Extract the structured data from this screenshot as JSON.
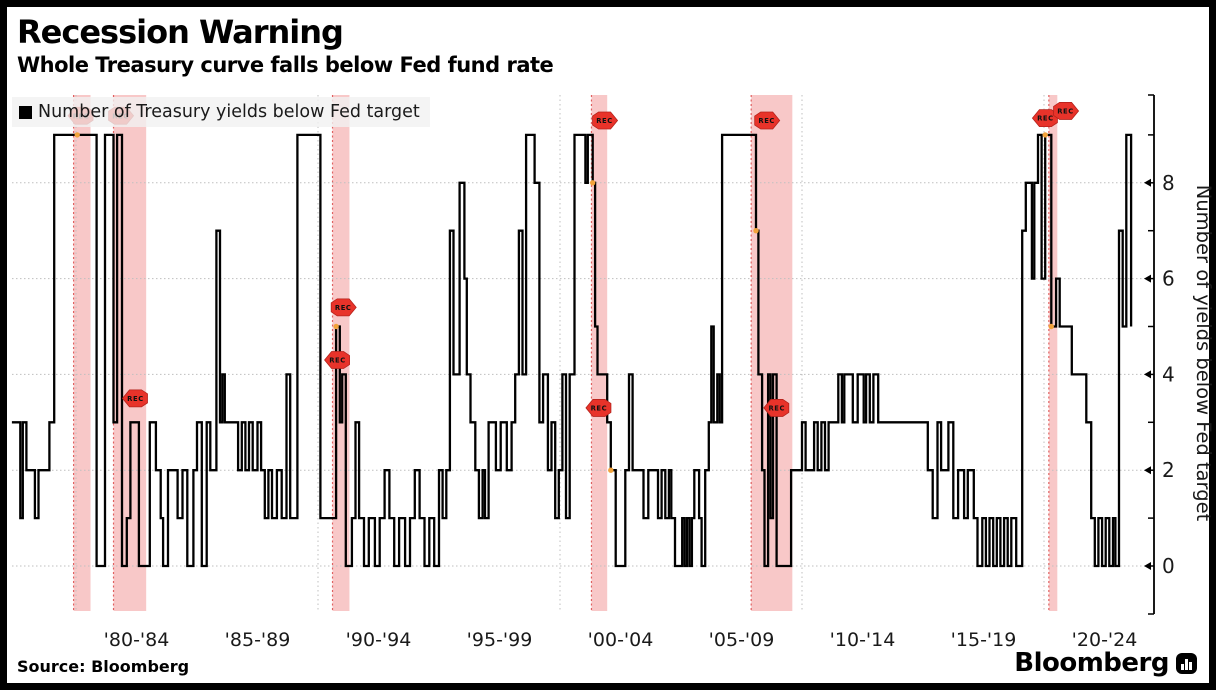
{
  "page": {
    "title": "Recession Warning",
    "subtitle": "Whole Treasury curve falls below Fed fund rate",
    "source": "Source: Bloomberg",
    "brand": "Bloomberg"
  },
  "legend": {
    "label": "Number of Treasury yields below Fed target",
    "swatch_color": "#000000"
  },
  "chart_data": {
    "type": "line",
    "step": true,
    "title": "Recession Warning",
    "subtitle": "Whole Treasury curve falls below Fed fund rate",
    "xlabel": "",
    "ylabel": "Number of yields below Fed target",
    "ylim": [
      0,
      9
    ],
    "xlim": [
      1977.35,
      2024.6
    ],
    "grid": {
      "h_values": [
        0,
        2,
        4,
        6,
        8
      ],
      "v_years": [
        1980,
        1990,
        2000,
        2010,
        2020
      ]
    },
    "y_axis": {
      "tick_values": [
        0,
        1,
        2,
        3,
        4,
        5,
        6,
        7,
        8,
        9
      ],
      "label_values": [
        0,
        2,
        4,
        6,
        8
      ]
    },
    "x_axis": {
      "labels": [
        {
          "text": "'80-'84",
          "year": 1982.5
        },
        {
          "text": "'85-'89",
          "year": 1987.5
        },
        {
          "text": "'90-'94",
          "year": 1992.5
        },
        {
          "text": "'95-'99",
          "year": 1997.5
        },
        {
          "text": "'00-'04",
          "year": 2002.5
        },
        {
          "text": "'05-'09",
          "year": 2007.5
        },
        {
          "text": "'10-'14",
          "year": 2012.5
        },
        {
          "text": "'15-'19",
          "year": 2017.5
        },
        {
          "text": "'20-'24",
          "year": 2022.5
        }
      ]
    },
    "series": [
      {
        "name": "Number of Treasury yields below Fed target",
        "color": "#000000",
        "points": [
          [
            1977.35,
            3
          ],
          [
            1977.7,
            1
          ],
          [
            1977.8,
            3
          ],
          [
            1977.95,
            2
          ],
          [
            1978.3,
            1
          ],
          [
            1978.45,
            2
          ],
          [
            1978.9,
            3
          ],
          [
            1979.1,
            9
          ],
          [
            1980.85,
            0
          ],
          [
            1981.2,
            9
          ],
          [
            1981.55,
            3
          ],
          [
            1981.7,
            9
          ],
          [
            1981.9,
            0
          ],
          [
            1982.1,
            1
          ],
          [
            1982.25,
            3
          ],
          [
            1982.6,
            0
          ],
          [
            1983.05,
            3
          ],
          [
            1983.3,
            2
          ],
          [
            1983.5,
            1
          ],
          [
            1983.6,
            0
          ],
          [
            1983.8,
            2
          ],
          [
            1984.2,
            1
          ],
          [
            1984.4,
            2
          ],
          [
            1984.6,
            0
          ],
          [
            1984.85,
            2
          ],
          [
            1985.0,
            3
          ],
          [
            1985.2,
            0
          ],
          [
            1985.4,
            3
          ],
          [
            1985.55,
            2
          ],
          [
            1985.8,
            7
          ],
          [
            1985.95,
            3
          ],
          [
            1986.05,
            4
          ],
          [
            1986.15,
            3
          ],
          [
            1986.7,
            2
          ],
          [
            1986.85,
            3
          ],
          [
            1987.0,
            2
          ],
          [
            1987.15,
            3
          ],
          [
            1987.3,
            2
          ],
          [
            1987.5,
            3
          ],
          [
            1987.65,
            2
          ],
          [
            1987.8,
            1
          ],
          [
            1987.95,
            2
          ],
          [
            1988.1,
            1
          ],
          [
            1988.3,
            2
          ],
          [
            1988.5,
            1
          ],
          [
            1988.7,
            4
          ],
          [
            1988.85,
            1
          ],
          [
            1989.15,
            9
          ],
          [
            1990.1,
            1
          ],
          [
            1990.75,
            5
          ],
          [
            1990.9,
            3
          ],
          [
            1991.0,
            4
          ],
          [
            1991.15,
            0
          ],
          [
            1991.4,
            1
          ],
          [
            1991.55,
            3
          ],
          [
            1991.7,
            1
          ],
          [
            1991.9,
            0
          ],
          [
            1992.1,
            1
          ],
          [
            1992.35,
            0
          ],
          [
            1992.55,
            1
          ],
          [
            1992.75,
            2
          ],
          [
            1992.95,
            1
          ],
          [
            1993.15,
            0
          ],
          [
            1993.35,
            1
          ],
          [
            1993.6,
            0
          ],
          [
            1993.8,
            1
          ],
          [
            1994.0,
            2
          ],
          [
            1994.2,
            1
          ],
          [
            1994.4,
            0
          ],
          [
            1994.6,
            1
          ],
          [
            1994.8,
            0
          ],
          [
            1995.0,
            2
          ],
          [
            1995.15,
            1
          ],
          [
            1995.3,
            2
          ],
          [
            1995.45,
            7
          ],
          [
            1995.6,
            4
          ],
          [
            1995.85,
            8
          ],
          [
            1996.05,
            6
          ],
          [
            1996.15,
            4
          ],
          [
            1996.3,
            3
          ],
          [
            1996.5,
            2
          ],
          [
            1996.65,
            1
          ],
          [
            1996.8,
            2
          ],
          [
            1996.9,
            1
          ],
          [
            1997.05,
            3
          ],
          [
            1997.35,
            2
          ],
          [
            1997.55,
            3
          ],
          [
            1997.8,
            2
          ],
          [
            1998.0,
            3
          ],
          [
            1998.15,
            4
          ],
          [
            1998.3,
            7
          ],
          [
            1998.45,
            4
          ],
          [
            1998.6,
            9
          ],
          [
            1998.95,
            8
          ],
          [
            1999.15,
            3
          ],
          [
            1999.3,
            4
          ],
          [
            1999.5,
            2
          ],
          [
            1999.65,
            3
          ],
          [
            1999.8,
            1
          ],
          [
            1999.95,
            2
          ],
          [
            2000.1,
            4
          ],
          [
            2000.25,
            1
          ],
          [
            2000.4,
            4
          ],
          [
            2000.6,
            9
          ],
          [
            2001.05,
            8
          ],
          [
            2001.15,
            9
          ],
          [
            2001.35,
            8
          ],
          [
            2001.45,
            5
          ],
          [
            2001.55,
            4
          ],
          [
            2001.95,
            3
          ],
          [
            2002.1,
            2
          ],
          [
            2002.3,
            0
          ],
          [
            2002.7,
            2
          ],
          [
            2002.85,
            4
          ],
          [
            2003.0,
            2
          ],
          [
            2003.45,
            1
          ],
          [
            2003.65,
            2
          ],
          [
            2004.05,
            1
          ],
          [
            2004.2,
            2
          ],
          [
            2004.35,
            1
          ],
          [
            2004.5,
            2
          ],
          [
            2004.6,
            1
          ],
          [
            2004.75,
            0
          ],
          [
            2005.05,
            1
          ],
          [
            2005.15,
            0
          ],
          [
            2005.25,
            1
          ],
          [
            2005.35,
            0
          ],
          [
            2005.45,
            1
          ],
          [
            2005.55,
            2
          ],
          [
            2005.75,
            1
          ],
          [
            2005.85,
            0
          ],
          [
            2006.0,
            2
          ],
          [
            2006.15,
            3
          ],
          [
            2006.25,
            5
          ],
          [
            2006.35,
            3
          ],
          [
            2006.5,
            4
          ],
          [
            2006.6,
            3
          ],
          [
            2006.7,
            9
          ],
          [
            2008.1,
            7
          ],
          [
            2008.2,
            4
          ],
          [
            2008.35,
            2
          ],
          [
            2008.45,
            0
          ],
          [
            2008.6,
            4
          ],
          [
            2008.7,
            1
          ],
          [
            2008.8,
            4
          ],
          [
            2008.95,
            0
          ],
          [
            2009.55,
            2
          ],
          [
            2010.0,
            3
          ],
          [
            2010.15,
            2
          ],
          [
            2010.5,
            3
          ],
          [
            2010.65,
            2
          ],
          [
            2010.8,
            3
          ],
          [
            2010.95,
            2
          ],
          [
            2011.1,
            3
          ],
          [
            2011.5,
            4
          ],
          [
            2011.65,
            3
          ],
          [
            2011.75,
            4
          ],
          [
            2012.1,
            3
          ],
          [
            2012.3,
            4
          ],
          [
            2012.55,
            3
          ],
          [
            2012.65,
            4
          ],
          [
            2012.8,
            3
          ],
          [
            2012.95,
            4
          ],
          [
            2013.15,
            3
          ],
          [
            2015.2,
            2
          ],
          [
            2015.4,
            1
          ],
          [
            2015.6,
            3
          ],
          [
            2015.75,
            2
          ],
          [
            2016.05,
            3
          ],
          [
            2016.25,
            1
          ],
          [
            2016.45,
            2
          ],
          [
            2016.7,
            1
          ],
          [
            2016.85,
            2
          ],
          [
            2017.1,
            1
          ],
          [
            2017.25,
            0
          ],
          [
            2017.45,
            1
          ],
          [
            2017.6,
            0
          ],
          [
            2017.75,
            1
          ],
          [
            2017.9,
            0
          ],
          [
            2018.05,
            1
          ],
          [
            2018.2,
            0
          ],
          [
            2018.35,
            1
          ],
          [
            2018.5,
            0
          ],
          [
            2018.65,
            1
          ],
          [
            2018.85,
            0
          ],
          [
            2019.1,
            7
          ],
          [
            2019.25,
            8
          ],
          [
            2019.5,
            6
          ],
          [
            2019.6,
            8
          ],
          [
            2019.75,
            9
          ],
          [
            2019.9,
            6
          ],
          [
            2020.05,
            9
          ],
          [
            2020.3,
            5
          ],
          [
            2020.5,
            6
          ],
          [
            2020.65,
            5
          ],
          [
            2021.15,
            4
          ],
          [
            2021.75,
            3
          ],
          [
            2021.95,
            1
          ],
          [
            2022.1,
            0
          ],
          [
            2022.25,
            1
          ],
          [
            2022.4,
            0
          ],
          [
            2022.55,
            1
          ],
          [
            2022.7,
            0
          ],
          [
            2022.85,
            1
          ],
          [
            2022.95,
            0
          ],
          [
            2023.1,
            7
          ],
          [
            2023.25,
            5
          ],
          [
            2023.4,
            9
          ],
          [
            2023.6,
            5
          ]
        ]
      }
    ],
    "recession_bands": [
      {
        "start": 1979.9,
        "end": 1980.6
      },
      {
        "start": 1981.55,
        "end": 1982.9
      },
      {
        "start": 1990.6,
        "end": 1991.3
      },
      {
        "start": 2001.3,
        "end": 2001.95
      },
      {
        "start": 2007.9,
        "end": 2009.6
      },
      {
        "start": 2020.2,
        "end": 2020.55
      }
    ],
    "rec_flags": [
      {
        "label": "REC",
        "year": 1980.25,
        "value": 9.4,
        "dir": "left"
      },
      {
        "label": "REC",
        "year": 1981.8,
        "value": 9.4,
        "dir": "right"
      },
      {
        "label": "REC",
        "year": 1982.5,
        "value": 3.5,
        "dir": "left"
      },
      {
        "label": "REC",
        "year": 1991.0,
        "value": 5.4,
        "dir": "right"
      },
      {
        "label": "REC",
        "year": 1990.85,
        "value": 4.3,
        "dir": "left"
      },
      {
        "label": "REC",
        "year": 2001.8,
        "value": 9.3,
        "dir": "right"
      },
      {
        "label": "REC",
        "year": 2001.65,
        "value": 3.3,
        "dir": "left"
      },
      {
        "label": "REC",
        "year": 2008.5,
        "value": 9.3,
        "dir": "right"
      },
      {
        "label": "REC",
        "year": 2009.0,
        "value": 3.3,
        "dir": "left"
      },
      {
        "label": "REC",
        "year": 2020.1,
        "value": 9.35,
        "dir": "left"
      },
      {
        "label": "REC",
        "year": 2020.85,
        "value": 9.5,
        "dir": "right"
      }
    ],
    "onset_dots": [
      {
        "year": 1980.05,
        "value": 9
      },
      {
        "year": 1990.75,
        "value": 5
      },
      {
        "year": 2001.35,
        "value": 8
      },
      {
        "year": 2002.1,
        "value": 2
      },
      {
        "year": 2008.1,
        "value": 7
      },
      {
        "year": 2020.05,
        "value": 9
      },
      {
        "year": 2020.3,
        "value": 5
      }
    ],
    "colors": {
      "line": "#000000",
      "band": "#f6b6b6",
      "band_edge": "#e06060",
      "grid": "#bfbfbf",
      "flag": "#e8332a",
      "flag_edge": "#b5231c",
      "dot": "#f2a33c",
      "axis": "#000000",
      "text": "#1a1a1a"
    }
  }
}
